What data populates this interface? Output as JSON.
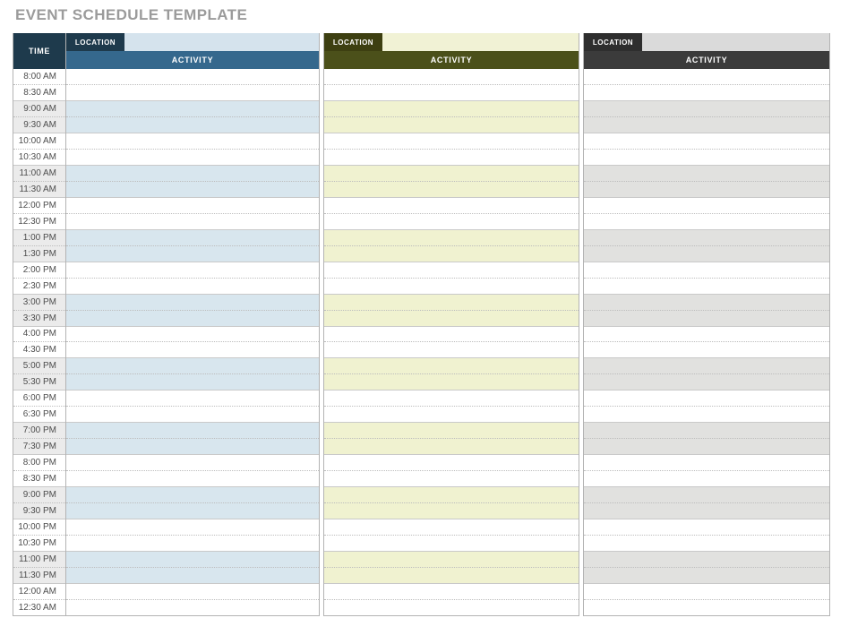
{
  "title": "EVENT SCHEDULE TEMPLATE",
  "time_column": {
    "header": "TIME",
    "times": [
      "8:00 AM",
      "8:30 AM",
      "9:00 AM",
      "9:30 AM",
      "10:00 AM",
      "10:30 AM",
      "11:00 AM",
      "11:30 AM",
      "12:00 PM",
      "12:30 PM",
      "1:00 PM",
      "1:30 PM",
      "2:00 PM",
      "2:30 PM",
      "3:00 PM",
      "3:30 PM",
      "4:00 PM",
      "4:30 PM",
      "5:00 PM",
      "5:30 PM",
      "6:00 PM",
      "6:30 PM",
      "7:00 PM",
      "7:30 PM",
      "8:00 PM",
      "8:30 PM",
      "9:00 PM",
      "9:30 PM",
      "10:00 PM",
      "10:30 PM",
      "11:00 PM",
      "11:30 PM",
      "12:00 AM",
      "12:30 AM"
    ]
  },
  "schedules": [
    {
      "location_label": "LOCATION",
      "activity_label": "ACTIVITY",
      "location_value": "",
      "colors": {
        "tab": "#1e3a4c",
        "bar": "#35688d",
        "band": "#d8e6ee",
        "input": "#d5e3ed"
      }
    },
    {
      "location_label": "LOCATION",
      "activity_label": "ACTIVITY",
      "location_value": "",
      "colors": {
        "tab": "#3d3f11",
        "bar": "#4b501a",
        "band": "#f0f2d0",
        "input": "#f1f2d5"
      }
    },
    {
      "location_label": "LOCATION",
      "activity_label": "ACTIVITY",
      "location_value": "",
      "colors": {
        "tab": "#2e2e2e",
        "bar": "#3b3b3b",
        "band": "#e1e1df",
        "input": "#dadada"
      }
    }
  ],
  "colors": {
    "title_color": "#9b9b9b",
    "time_header_bg": "#1e3a4c",
    "time_band_bg": "#ebebeb",
    "time_text": "#4d4d4d",
    "border": "#b3b3b3",
    "dotted_line": "#bdbdbd",
    "pair_line": "#c9c9c9"
  }
}
